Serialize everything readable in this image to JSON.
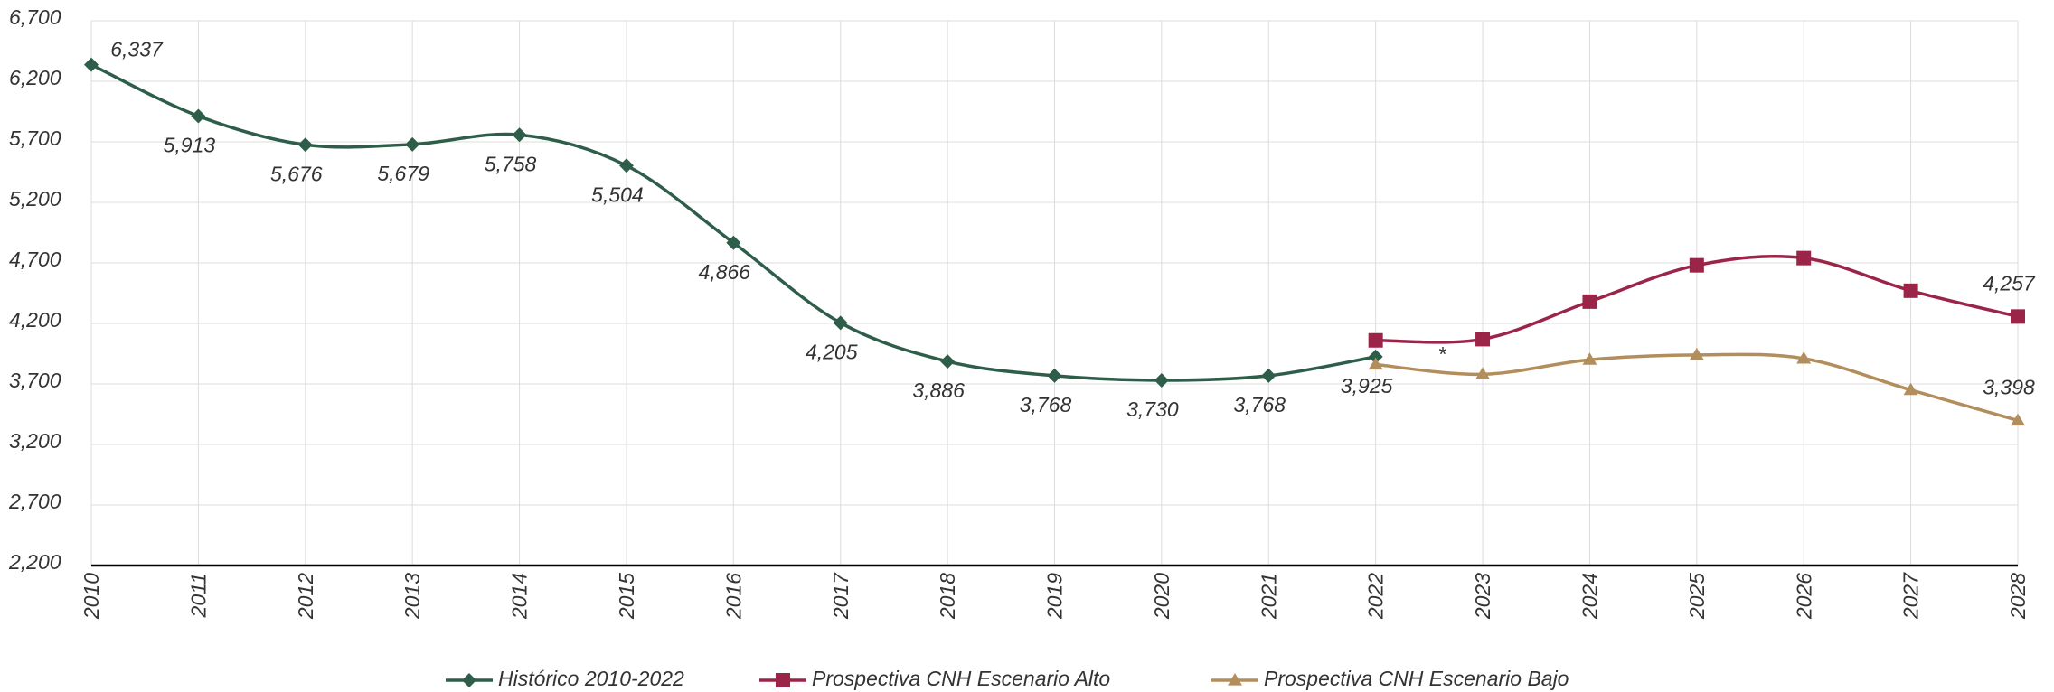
{
  "chart_data": {
    "type": "line",
    "categories": [
      "2010",
      "2011",
      "2012",
      "2013",
      "2014",
      "2015",
      "2016",
      "2017",
      "2018",
      "2019",
      "2020",
      "2021",
      "2022",
      "2023",
      "2024",
      "2025",
      "2026",
      "2027",
      "2028"
    ],
    "series": [
      {
        "name": "Histórico 2010-2022",
        "color": "#2e5e4a",
        "marker": "diamond",
        "values": [
          6337,
          5913,
          5676,
          5679,
          5758,
          5504,
          4866,
          4205,
          3886,
          3768,
          3730,
          3768,
          3925,
          null,
          null,
          null,
          null,
          null,
          null
        ],
        "value_labels": [
          "6,337",
          "5,913",
          "5,676",
          "5,679",
          "5,758",
          "5,504",
          "4,866",
          "4,205",
          "3,886",
          "3,768",
          "3,730",
          "3,768",
          "3,925",
          null,
          null,
          null,
          null,
          null,
          null
        ]
      },
      {
        "name": "Prospectiva CNH Escenario Alto",
        "color": "#9b2449",
        "marker": "square",
        "values": [
          null,
          null,
          null,
          null,
          null,
          null,
          null,
          null,
          null,
          null,
          null,
          null,
          4060,
          4070,
          4380,
          4680,
          4740,
          4470,
          4257
        ],
        "value_labels": [
          null,
          null,
          null,
          null,
          null,
          null,
          null,
          null,
          null,
          null,
          null,
          null,
          null,
          null,
          null,
          null,
          null,
          null,
          "4,257"
        ]
      },
      {
        "name": "Prospectiva CNH Escenario Bajo",
        "color": "#b38e5d",
        "marker": "triangle",
        "values": [
          null,
          null,
          null,
          null,
          null,
          null,
          null,
          null,
          null,
          null,
          null,
          null,
          3860,
          3780,
          3900,
          3940,
          3910,
          3650,
          3398
        ],
        "value_labels": [
          null,
          null,
          null,
          null,
          null,
          null,
          null,
          null,
          null,
          null,
          null,
          null,
          null,
          null,
          null,
          null,
          null,
          null,
          "3,398"
        ]
      }
    ],
    "annotation": "*",
    "ylim": [
      2200,
      6700
    ],
    "yticks": [
      {
        "value": 2200,
        "label": "2,200"
      },
      {
        "value": 2700,
        "label": "2,700"
      },
      {
        "value": 3200,
        "label": "3,200"
      },
      {
        "value": 3700,
        "label": "3,700"
      },
      {
        "value": 4200,
        "label": "4,200"
      },
      {
        "value": 4700,
        "label": "4,700"
      },
      {
        "value": 5200,
        "label": "5,200"
      },
      {
        "value": 5700,
        "label": "5,700"
      },
      {
        "value": 6200,
        "label": "6,200"
      },
      {
        "value": 6700,
        "label": "6,700"
      }
    ],
    "grid": true
  }
}
